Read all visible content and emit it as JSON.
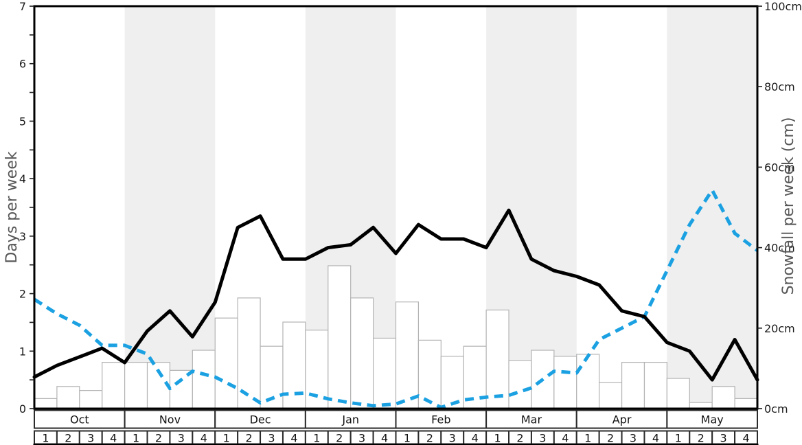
{
  "chart_data": {
    "type": "bar",
    "title": "",
    "description": "Seasonal snow chart: weekly snowfall bars with snow-days and rain-days lines, October through May",
    "months": [
      "Oct",
      "Nov",
      "Dec",
      "Jan",
      "Feb",
      "Mar",
      "Apr",
      "May"
    ],
    "week_labels": [
      "1",
      "2",
      "3",
      "4"
    ],
    "shaded_months": [
      "Nov",
      "Jan",
      "Mar",
      "May"
    ],
    "ylabel_left": "Days per week",
    "ylabel_right": "Snowfall per week (cm)",
    "axis_left": {
      "min": 0,
      "max": 7,
      "tick_labels": [
        "0",
        "1",
        "2",
        "3",
        "4",
        "5",
        "6",
        "7"
      ],
      "tick_values": [
        0,
        1,
        2,
        3,
        4,
        5,
        6,
        7
      ],
      "minor_tick_step": 0.5
    },
    "axis_right": {
      "min": 0,
      "max": 100,
      "tick_labels": [
        "0cm",
        "20cm",
        "40cm",
        "60cm",
        "80cm",
        "100cm"
      ],
      "tick_values": [
        0,
        20,
        40,
        60,
        80,
        100
      ]
    },
    "grid": false,
    "legend": "none",
    "series": [
      {
        "name": "snowfall-bars",
        "type": "bar",
        "axis": "right",
        "unit": "cm",
        "note": "one bar per week, weeks run Oct w1 through May w4",
        "values": [
          2.5,
          5.5,
          4.5,
          11.5,
          11.5,
          11.5,
          9.5,
          14.5,
          22.5,
          27.5,
          15.5,
          21.5,
          19.5,
          35.5,
          27.5,
          17.5,
          26.5,
          17,
          13,
          15.5,
          24.5,
          12,
          14.5,
          13,
          13.5,
          6.5,
          11.5,
          11.5,
          7.5,
          1.5,
          5.5,
          2.5
        ]
      },
      {
        "name": "snow-days-line",
        "type": "line",
        "style": "solid",
        "axis": "left",
        "unit": "days",
        "note": "33 points plotted at week boundaries",
        "values": [
          0.55,
          0.75,
          0.9,
          1.05,
          0.8,
          1.35,
          1.7,
          1.25,
          1.85,
          3.15,
          3.35,
          2.6,
          2.6,
          2.8,
          2.85,
          3.15,
          2.7,
          3.2,
          2.95,
          2.95,
          2.8,
          3.45,
          2.6,
          2.4,
          2.3,
          2.15,
          1.7,
          1.6,
          1.15,
          1.0,
          0.5,
          1.2,
          0.5
        ]
      },
      {
        "name": "rain-days-line",
        "type": "line",
        "style": "dashed",
        "axis": "left",
        "unit": "days",
        "note": "33 points plotted at week boundaries",
        "values": [
          1.9,
          1.65,
          1.45,
          1.1,
          1.1,
          0.95,
          0.35,
          0.65,
          0.55,
          0.35,
          0.1,
          0.25,
          0.27,
          0.17,
          0.1,
          0.05,
          0.08,
          0.22,
          0.02,
          0.15,
          0.2,
          0.23,
          0.36,
          0.65,
          0.62,
          1.2,
          1.4,
          1.6,
          2.4,
          3.2,
          3.8,
          3.05,
          2.75
        ]
      }
    ],
    "colors": {
      "band_shade": "#efefef",
      "bar_fill": "#ffffff",
      "bar_border": "#b3b3b3",
      "snow_days_line": "#000000",
      "rain_days_line": "#1ba1e2",
      "axis_spine": "#000000",
      "tick_text": "#1a1a1a",
      "axis_title_text": "#575757",
      "table_border": "#2b2b2b",
      "table_bottom_border": "#000000"
    }
  }
}
